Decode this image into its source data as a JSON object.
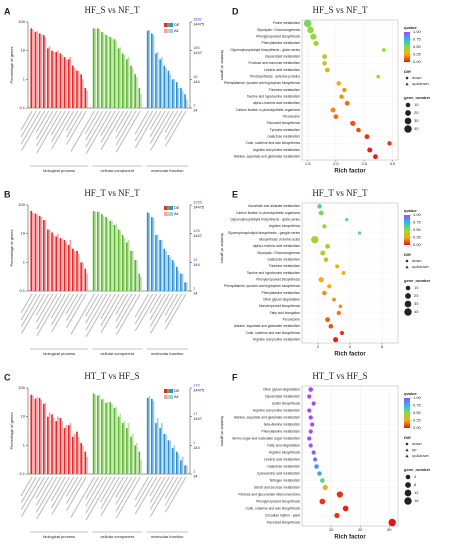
{
  "chart_data": [
    {
      "type": "go_bar",
      "label": "A",
      "title": "HF_S vs NF_T",
      "ylabel": "Percentage of genes",
      "y2label": "Number of genes",
      "yscale": "log",
      "ylim": [
        0.1,
        100
      ],
      "yticks": [
        0.1,
        1,
        10,
        100
      ],
      "y2labels": [
        [
          "1",
          "14"
        ],
        [
          "18",
          "144"
        ],
        [
          "185",
          "1447"
        ],
        [
          "1852",
          "14475"
        ]
      ],
      "groups": [
        {
          "name": "biological process",
          "count": 14,
          "color": "#e8282b",
          "light": "#f3a3a4"
        },
        {
          "name": "cellular component",
          "count": 12,
          "color": "#5cb531",
          "light": "#b9e0a3"
        },
        {
          "name": "molecular function",
          "count": 10,
          "color": "#2e8fd0",
          "light": "#9fcbea"
        }
      ],
      "series": [
        {
          "name": "DE",
          "values": [
            60,
            45,
            40,
            35,
            12,
            10,
            9,
            8,
            6,
            5,
            3,
            2,
            1.5,
            0.5,
            60,
            60,
            45,
            35,
            30,
            25,
            12,
            8,
            5,
            3,
            1.5,
            0.5,
            50,
            40,
            8,
            5,
            3,
            2,
            1,
            0.8,
            0.5,
            0.3
          ]
        },
        {
          "name": "All",
          "values": [
            55,
            48,
            38,
            30,
            14,
            9,
            10,
            7,
            5,
            6,
            2.5,
            2,
            1,
            0.4,
            58,
            58,
            42,
            33,
            28,
            22,
            13,
            7,
            6,
            2.5,
            1.2,
            0.3,
            52,
            35,
            9,
            6,
            2.5,
            1.5,
            1,
            0.5,
            0.4,
            0.2
          ]
        }
      ]
    },
    {
      "type": "go_bar",
      "label": "B",
      "title": "HF_T vs NF_T",
      "ylabel": "Percentage of genes",
      "y2label": "Number of genes",
      "yscale": "log",
      "ylim": [
        0.1,
        100
      ],
      "yticks": [
        0.1,
        1,
        10,
        100
      ],
      "y2labels": [
        [
          "1",
          "14"
        ],
        [
          "12",
          "144"
        ],
        [
          "125",
          "1447"
        ],
        [
          "1255",
          "14475"
        ]
      ],
      "groups": [
        {
          "name": "biological process",
          "count": 14,
          "color": "#e8282b",
          "light": "#f3a3a4"
        },
        {
          "name": "cellular component",
          "count": 12,
          "color": "#5cb531",
          "light": "#b9e0a3"
        },
        {
          "name": "molecular function",
          "count": 10,
          "color": "#2e8fd0",
          "light": "#9fcbea"
        }
      ],
      "series": [
        {
          "name": "DE",
          "values": [
            62,
            50,
            42,
            30,
            14,
            11,
            8,
            7,
            6,
            4,
            3,
            2.5,
            1,
            0.6,
            62,
            58,
            48,
            38,
            28,
            20,
            14,
            9,
            5,
            2.5,
            1.2,
            0.4,
            55,
            38,
            9,
            6,
            3,
            1.8,
            1.2,
            0.7,
            0.4,
            0.2
          ]
        },
        {
          "name": "All",
          "values": [
            55,
            48,
            38,
            30,
            14,
            9,
            10,
            7,
            5,
            6,
            2.5,
            2,
            1,
            0.4,
            58,
            58,
            42,
            33,
            28,
            22,
            13,
            7,
            6,
            2.5,
            1.2,
            0.3,
            52,
            35,
            9,
            6,
            2.5,
            1.5,
            1,
            0.5,
            0.4,
            0.2
          ]
        }
      ]
    },
    {
      "type": "go_bar",
      "label": "C",
      "title": "HT_T vs HF_S",
      "ylabel": "Percentage of genes",
      "y2label": "Number of genes",
      "yscale": "log",
      "ylim": [
        0.1,
        100
      ],
      "yticks": [
        0.1,
        1,
        10,
        100
      ],
      "y2labels": [
        [
          "1",
          "14"
        ],
        [
          "1",
          "144"
        ],
        [
          "17",
          "1447"
        ],
        [
          "170",
          "14475"
        ]
      ],
      "groups": [
        {
          "name": "biological process",
          "count": 14,
          "color": "#e8282b",
          "light": "#f3a3a4"
        },
        {
          "name": "cellular component",
          "count": 12,
          "color": "#5cb531",
          "light": "#b9e0a3"
        },
        {
          "name": "molecular function",
          "count": 10,
          "color": "#2e8fd0",
          "light": "#9fcbea"
        }
      ],
      "series": [
        {
          "name": "DE",
          "values": [
            58,
            42,
            45,
            28,
            10,
            12,
            7,
            9,
            4,
            5,
            2,
            3,
            1.2,
            0.6,
            65,
            55,
            40,
            30,
            32,
            20,
            10,
            6,
            4,
            2,
            1,
            0.6,
            45,
            42,
            6,
            4,
            2.5,
            1.5,
            0.8,
            0.6,
            0.3,
            0.2
          ]
        },
        {
          "name": "All",
          "values": [
            55,
            48,
            38,
            30,
            14,
            9,
            10,
            7,
            5,
            6,
            2.5,
            2,
            1,
            0.4,
            58,
            58,
            42,
            33,
            28,
            22,
            13,
            7,
            6,
            2.5,
            1.2,
            0.3,
            52,
            35,
            9,
            6,
            2.5,
            1.5,
            1,
            0.5,
            0.4,
            0.2
          ]
        }
      ]
    },
    {
      "type": "bubble",
      "label": "D",
      "title": "HF_S vs NF_T",
      "xlabel": "Rich factor",
      "xlim": [
        1.4,
        3.1
      ],
      "xticks": [
        1.5,
        {
          "value": 2,
          "label": "2.0"
        },
        2.5,
        {
          "value": 3,
          "label": "3.0"
        }
      ],
      "categories": [
        "Purine metabolism",
        "Glycolysis / Gluconeogenesis",
        "Phenylpropanoid biosynthesis",
        "Phenylalanine metabolism",
        "Glycerophospholipid biosynthesis - globo series",
        "Glycerolipid metabolism",
        "Fructose and mannose metabolism",
        "Linoleic acid metabolism",
        "Photosynthesis - antenna proteins",
        "Phenylalanine, tyrosine and tryptophan biosynthesis",
        "Thiamine metabolism",
        "Taurine and hypotaurine metabolism",
        "alpha-Linolenic acid metabolism",
        "Carbon fixation in photosynthetic organisms",
        "Peroxisome",
        "Flavonoid biosynthesis",
        "Tyrosine metabolism",
        "Galactose metabolism",
        "Cutin, suberine and wax biosynthesis",
        "Arginine and proline metabolism",
        "Alanine, aspartate and glutamate metabolism"
      ],
      "values": [
        1.5,
        1.55,
        1.6,
        1.65,
        2.85,
        1.8,
        1.8,
        1.85,
        2.75,
        2.05,
        2.15,
        2.1,
        2.2,
        1.95,
        2.0,
        2.3,
        2.4,
        2.55,
        2.95,
        2.6,
        2.7
      ],
      "sizes": [
        40,
        30,
        25,
        15,
        5,
        12,
        10,
        12,
        4,
        10,
        8,
        8,
        12,
        14,
        12,
        15,
        10,
        12,
        8,
        14,
        12
      ],
      "qvalues": [
        0.55,
        0.5,
        0.5,
        0.45,
        0.5,
        0.4,
        0.35,
        0.3,
        0.3,
        0.25,
        0.2,
        0.2,
        0.15,
        0.2,
        0.15,
        0.1,
        0.1,
        0.05,
        0.05,
        0.02,
        0.02
      ],
      "color_label": "qvalue",
      "color_ticks": [
        {
          "value": 1,
          "label": "1.00"
        },
        {
          "value": 0.75,
          "label": "0.75"
        },
        {
          "value": 0.5,
          "label": "0.50"
        },
        {
          "value": 0.25,
          "label": "0.25"
        },
        {
          "value": 0,
          "label": "0.00"
        }
      ],
      "shape_label": "Diff",
      "shape_legend": [
        "down",
        "up&down"
      ],
      "size_label": "gene_number",
      "size_legend": [
        10,
        20,
        30,
        40
      ]
    },
    {
      "type": "bubble",
      "label": "E",
      "title": "HF_T vs NF_T",
      "xlabel": "Rich factor",
      "xlim": [
        1,
        7
      ],
      "xticks": [
        2,
        4,
        6
      ],
      "categories": [
        "Ascorbate and aldarate metabolism",
        "Carbon fixation in photosynthetic organisms",
        "Glycerophospholipid biosynthesis - globo series",
        "Arginine biosynthesis",
        "Glycerophospholipid biosynthesis - ganglio series",
        "Biosynthesis of amino acids",
        "alpha-Linolenic acid metabolism",
        "Glycolysis / Gluconeogenesis",
        "Galactose metabolism",
        "Thiamine metabolism",
        "Taurine and hypotaurine metabolism",
        "Phenylpropanoid biosynthesis",
        "Phenylalanine, tyrosine and tryptophan biosynthesis",
        "Phenylalanine metabolism",
        "Other glycan degradation",
        "Monoterpenoid biosynthesis",
        "Fatty acid elongation",
        "Peroxisome",
        "Alanine, aspartate and glutamate metabolism",
        "Cutin, suberine and wax biosynthesis",
        "Arginine and proline metabolism"
      ],
      "values": [
        2.1,
        2.2,
        3.8,
        2.4,
        4.6,
        1.8,
        2.6,
        2.3,
        2.5,
        3.2,
        3.6,
        2.2,
        2.7,
        2.4,
        3.0,
        3.4,
        3.3,
        2.6,
        2.8,
        3.5,
        3.1
      ],
      "sizes": [
        10,
        12,
        3,
        8,
        3,
        40,
        12,
        14,
        10,
        6,
        6,
        16,
        8,
        10,
        5,
        4,
        8,
        12,
        10,
        8,
        14
      ],
      "qvalues": [
        0.6,
        0.55,
        0.6,
        0.5,
        0.6,
        0.45,
        0.4,
        0.4,
        0.35,
        0.3,
        0.3,
        0.25,
        0.25,
        0.2,
        0.2,
        0.2,
        0.15,
        0.12,
        0.1,
        0.05,
        0.02
      ],
      "color_label": "qvalue",
      "color_ticks": [
        {
          "value": 1,
          "label": "1.00"
        },
        {
          "value": 0.75,
          "label": "0.75"
        },
        {
          "value": 0.5,
          "label": "0.50"
        },
        {
          "value": 0.25,
          "label": "0.25"
        },
        {
          "value": 0,
          "label": "0.00"
        }
      ],
      "shape_label": "Diff",
      "shape_legend": [
        "down",
        "up&down"
      ],
      "size_label": "gene_number",
      "size_legend": [
        10,
        20,
        30,
        40
      ]
    },
    {
      "type": "bubble",
      "label": "F",
      "title": "HT_T vs HF_S",
      "xlabel": "Rich factor",
      "xlim": [
        0,
        33
      ],
      "xticks": [
        10,
        20,
        30
      ],
      "categories": [
        "Other glycan degradation",
        "Glycerolipid metabolism",
        "Zeatin biosynthesis",
        "Arginine and proline metabolism",
        "Alanine, aspartate and glutamate metabolism",
        "beta-Alanine metabolism",
        "Phenylalanine metabolism",
        "Amino sugar and nucleotide sugar metabolism",
        "Fatty acid degradation",
        "Arginine biosynthesis",
        "Linoleic acid metabolism",
        "Galactose metabolism",
        "Cyanoamino acid metabolism",
        "Nitrogen metabolism",
        "Starch and sucrose metabolism",
        "Pentose and glucuronate interconversions",
        "Phenylpropanoid biosynthesis",
        "Cutin, suberine and wax biosynthesis",
        "Circadian rhythm - plant",
        "Flavonoid biosynthesis"
      ],
      "values": [
        3,
        2.5,
        4,
        2.5,
        3,
        3.5,
        3,
        2.5,
        3,
        4,
        4.5,
        5,
        6,
        7,
        8,
        13,
        7,
        15,
        12,
        31
      ],
      "sizes": [
        4,
        3,
        3,
        3,
        3,
        3,
        3,
        3,
        3,
        3,
        3,
        4,
        4,
        4,
        6,
        10,
        8,
        8,
        6,
        16
      ],
      "qvalues": [
        1,
        1,
        1,
        1,
        1,
        1,
        1,
        1,
        0.95,
        0.95,
        0.9,
        0.85,
        0.8,
        0.6,
        0.3,
        0.05,
        0.05,
        0.02,
        0.05,
        0
      ],
      "color_label": "qvalue",
      "color_ticks": [
        {
          "value": 1,
          "label": "1.00"
        },
        {
          "value": 0.75,
          "label": "0.75"
        },
        {
          "value": 0.5,
          "label": "0.50"
        },
        {
          "value": 0.25,
          "label": "0.25"
        },
        {
          "value": 0,
          "label": "0.00"
        }
      ],
      "shape_label": "Diff",
      "shape_legend": [
        "down",
        "up",
        "up&down"
      ],
      "size_label": "gene_number",
      "size_legend": [
        4,
        8,
        12,
        16
      ]
    }
  ]
}
